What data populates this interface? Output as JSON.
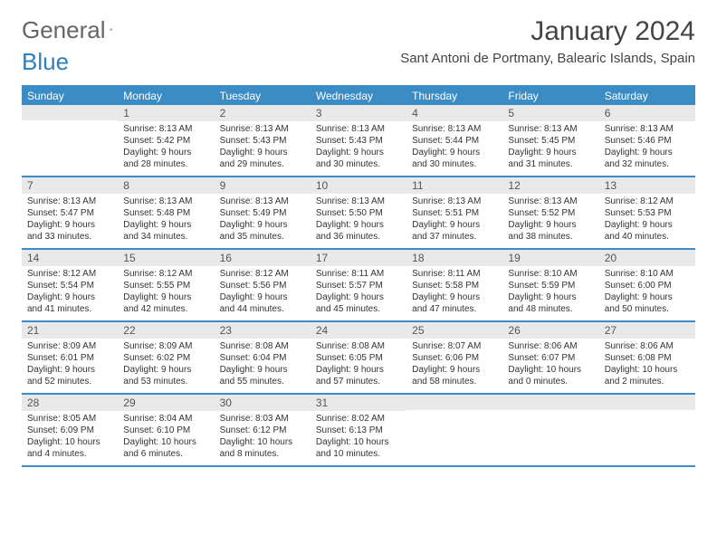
{
  "logo": {
    "text1": "General",
    "text2": "Blue",
    "color1": "#6b6b6b",
    "color2": "#2f7fbf"
  },
  "title": "January 2024",
  "location": "Sant Antoni de Portmany, Balearic Islands, Spain",
  "weekdays": [
    "Sunday",
    "Monday",
    "Tuesday",
    "Wednesday",
    "Thursday",
    "Friday",
    "Saturday"
  ],
  "header_bg": "#3b8bc4",
  "daynum_bg": "#e9e9e9",
  "weeks": [
    [
      {
        "num": "",
        "lines": [
          "",
          "",
          "",
          ""
        ]
      },
      {
        "num": "1",
        "lines": [
          "Sunrise: 8:13 AM",
          "Sunset: 5:42 PM",
          "Daylight: 9 hours",
          "and 28 minutes."
        ]
      },
      {
        "num": "2",
        "lines": [
          "Sunrise: 8:13 AM",
          "Sunset: 5:43 PM",
          "Daylight: 9 hours",
          "and 29 minutes."
        ]
      },
      {
        "num": "3",
        "lines": [
          "Sunrise: 8:13 AM",
          "Sunset: 5:43 PM",
          "Daylight: 9 hours",
          "and 30 minutes."
        ]
      },
      {
        "num": "4",
        "lines": [
          "Sunrise: 8:13 AM",
          "Sunset: 5:44 PM",
          "Daylight: 9 hours",
          "and 30 minutes."
        ]
      },
      {
        "num": "5",
        "lines": [
          "Sunrise: 8:13 AM",
          "Sunset: 5:45 PM",
          "Daylight: 9 hours",
          "and 31 minutes."
        ]
      },
      {
        "num": "6",
        "lines": [
          "Sunrise: 8:13 AM",
          "Sunset: 5:46 PM",
          "Daylight: 9 hours",
          "and 32 minutes."
        ]
      }
    ],
    [
      {
        "num": "7",
        "lines": [
          "Sunrise: 8:13 AM",
          "Sunset: 5:47 PM",
          "Daylight: 9 hours",
          "and 33 minutes."
        ]
      },
      {
        "num": "8",
        "lines": [
          "Sunrise: 8:13 AM",
          "Sunset: 5:48 PM",
          "Daylight: 9 hours",
          "and 34 minutes."
        ]
      },
      {
        "num": "9",
        "lines": [
          "Sunrise: 8:13 AM",
          "Sunset: 5:49 PM",
          "Daylight: 9 hours",
          "and 35 minutes."
        ]
      },
      {
        "num": "10",
        "lines": [
          "Sunrise: 8:13 AM",
          "Sunset: 5:50 PM",
          "Daylight: 9 hours",
          "and 36 minutes."
        ]
      },
      {
        "num": "11",
        "lines": [
          "Sunrise: 8:13 AM",
          "Sunset: 5:51 PM",
          "Daylight: 9 hours",
          "and 37 minutes."
        ]
      },
      {
        "num": "12",
        "lines": [
          "Sunrise: 8:13 AM",
          "Sunset: 5:52 PM",
          "Daylight: 9 hours",
          "and 38 minutes."
        ]
      },
      {
        "num": "13",
        "lines": [
          "Sunrise: 8:12 AM",
          "Sunset: 5:53 PM",
          "Daylight: 9 hours",
          "and 40 minutes."
        ]
      }
    ],
    [
      {
        "num": "14",
        "lines": [
          "Sunrise: 8:12 AM",
          "Sunset: 5:54 PM",
          "Daylight: 9 hours",
          "and 41 minutes."
        ]
      },
      {
        "num": "15",
        "lines": [
          "Sunrise: 8:12 AM",
          "Sunset: 5:55 PM",
          "Daylight: 9 hours",
          "and 42 minutes."
        ]
      },
      {
        "num": "16",
        "lines": [
          "Sunrise: 8:12 AM",
          "Sunset: 5:56 PM",
          "Daylight: 9 hours",
          "and 44 minutes."
        ]
      },
      {
        "num": "17",
        "lines": [
          "Sunrise: 8:11 AM",
          "Sunset: 5:57 PM",
          "Daylight: 9 hours",
          "and 45 minutes."
        ]
      },
      {
        "num": "18",
        "lines": [
          "Sunrise: 8:11 AM",
          "Sunset: 5:58 PM",
          "Daylight: 9 hours",
          "and 47 minutes."
        ]
      },
      {
        "num": "19",
        "lines": [
          "Sunrise: 8:10 AM",
          "Sunset: 5:59 PM",
          "Daylight: 9 hours",
          "and 48 minutes."
        ]
      },
      {
        "num": "20",
        "lines": [
          "Sunrise: 8:10 AM",
          "Sunset: 6:00 PM",
          "Daylight: 9 hours",
          "and 50 minutes."
        ]
      }
    ],
    [
      {
        "num": "21",
        "lines": [
          "Sunrise: 8:09 AM",
          "Sunset: 6:01 PM",
          "Daylight: 9 hours",
          "and 52 minutes."
        ]
      },
      {
        "num": "22",
        "lines": [
          "Sunrise: 8:09 AM",
          "Sunset: 6:02 PM",
          "Daylight: 9 hours",
          "and 53 minutes."
        ]
      },
      {
        "num": "23",
        "lines": [
          "Sunrise: 8:08 AM",
          "Sunset: 6:04 PM",
          "Daylight: 9 hours",
          "and 55 minutes."
        ]
      },
      {
        "num": "24",
        "lines": [
          "Sunrise: 8:08 AM",
          "Sunset: 6:05 PM",
          "Daylight: 9 hours",
          "and 57 minutes."
        ]
      },
      {
        "num": "25",
        "lines": [
          "Sunrise: 8:07 AM",
          "Sunset: 6:06 PM",
          "Daylight: 9 hours",
          "and 58 minutes."
        ]
      },
      {
        "num": "26",
        "lines": [
          "Sunrise: 8:06 AM",
          "Sunset: 6:07 PM",
          "Daylight: 10 hours",
          "and 0 minutes."
        ]
      },
      {
        "num": "27",
        "lines": [
          "Sunrise: 8:06 AM",
          "Sunset: 6:08 PM",
          "Daylight: 10 hours",
          "and 2 minutes."
        ]
      }
    ],
    [
      {
        "num": "28",
        "lines": [
          "Sunrise: 8:05 AM",
          "Sunset: 6:09 PM",
          "Daylight: 10 hours",
          "and 4 minutes."
        ]
      },
      {
        "num": "29",
        "lines": [
          "Sunrise: 8:04 AM",
          "Sunset: 6:10 PM",
          "Daylight: 10 hours",
          "and 6 minutes."
        ]
      },
      {
        "num": "30",
        "lines": [
          "Sunrise: 8:03 AM",
          "Sunset: 6:12 PM",
          "Daylight: 10 hours",
          "and 8 minutes."
        ]
      },
      {
        "num": "31",
        "lines": [
          "Sunrise: 8:02 AM",
          "Sunset: 6:13 PM",
          "Daylight: 10 hours",
          "and 10 minutes."
        ]
      },
      {
        "num": "",
        "lines": [
          "",
          "",
          "",
          ""
        ]
      },
      {
        "num": "",
        "lines": [
          "",
          "",
          "",
          ""
        ]
      },
      {
        "num": "",
        "lines": [
          "",
          "",
          "",
          ""
        ]
      }
    ]
  ]
}
